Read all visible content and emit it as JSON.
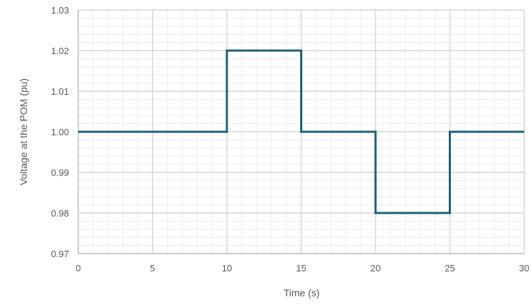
{
  "chart_data": {
    "type": "line",
    "title": "",
    "xlabel": "Time (s)",
    "ylabel": "Voltage at the POM (pu)",
    "xlim": [
      0,
      30
    ],
    "ylim": [
      0.97,
      1.03
    ],
    "x_ticks": [
      0,
      5,
      10,
      15,
      20,
      25,
      30
    ],
    "x_tick_labels": [
      "0",
      "5",
      "10",
      "15",
      "20",
      "25",
      "30"
    ],
    "y_ticks": [
      0.97,
      0.98,
      0.99,
      1.0,
      1.01,
      1.02,
      1.03
    ],
    "y_tick_labels": [
      "0.97",
      "0.98",
      "0.99",
      "1.00",
      "1.01",
      "1.02",
      "1.03"
    ],
    "grid": true,
    "minor_grid": true,
    "legend": "none",
    "series": [
      {
        "color": "#1f5f7a",
        "x": [
          0,
          10,
          10,
          15,
          15,
          20,
          20,
          25,
          25,
          30
        ],
        "y": [
          1.0,
          1.0,
          1.02,
          1.02,
          1.0,
          1.0,
          0.98,
          0.98,
          1.0,
          1.0
        ]
      }
    ]
  }
}
